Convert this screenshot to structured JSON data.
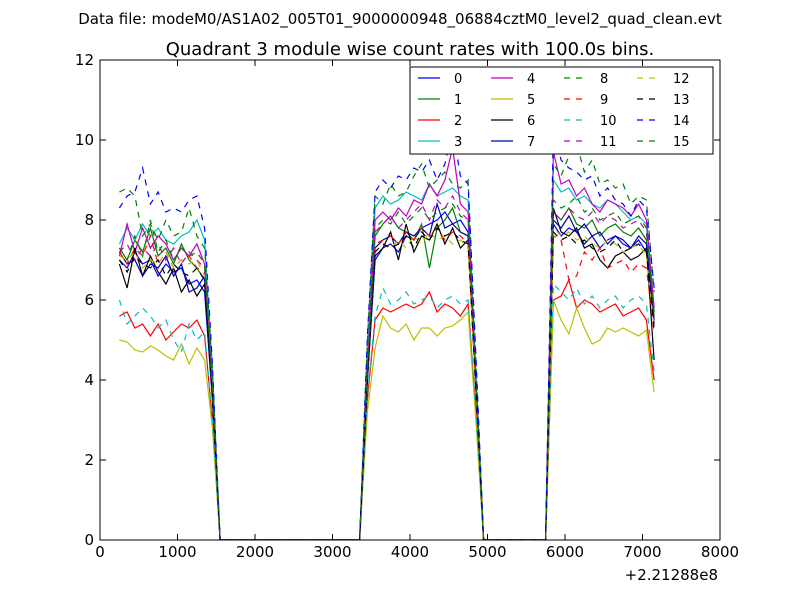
{
  "chart_data": {
    "type": "line",
    "suptitle": "Data file: modeM0/AS1A02_005T01_9000000948_06884cztM0_level2_quad_clean.evt",
    "title": "Quadrant 3 module wise count rates with 100.0s bins.",
    "xlabel": "",
    "ylabel": "",
    "x_offset_label": "+2.21288e8",
    "xlim": [
      0,
      8000
    ],
    "ylim": [
      0,
      12
    ],
    "x_ticks": [
      "0",
      "1000",
      "2000",
      "3000",
      "4000",
      "5000",
      "6000",
      "7000",
      "8000"
    ],
    "y_ticks": [
      "0",
      "2",
      "4",
      "6",
      "8",
      "10",
      "12"
    ],
    "legend_position": "top-right",
    "legend_columns": 4,
    "x": [
      250,
      350,
      450,
      550,
      650,
      750,
      850,
      950,
      1050,
      1150,
      1250,
      1350,
      1450,
      1550,
      1650,
      1750,
      1850,
      1950,
      2050,
      2150,
      2250,
      2350,
      2450,
      2550,
      2650,
      2750,
      2850,
      2950,
      3050,
      3150,
      3250,
      3350,
      3450,
      3550,
      3650,
      3750,
      3850,
      3950,
      4050,
      4150,
      4250,
      4350,
      4450,
      4550,
      4650,
      4750,
      4850,
      4950,
      5050,
      5150,
      5250,
      5350,
      5450,
      5550,
      5650,
      5750,
      5850,
      5950,
      6050,
      6150,
      6250,
      6350,
      6450,
      6550,
      6650,
      6750,
      6850,
      6950,
      7050,
      7150
    ],
    "series": [
      {
        "name": "0",
        "color": "#0000ff",
        "dash": "solid",
        "values": [
          7.0,
          6.8,
          7.2,
          6.9,
          7.0,
          6.6,
          6.9,
          6.7,
          6.8,
          6.4,
          6.5,
          6.2,
          3.5,
          0,
          0,
          0,
          0,
          0,
          0,
          0,
          0,
          0,
          0,
          0,
          0,
          0,
          0,
          0,
          0,
          0,
          0,
          0,
          4.0,
          7.0,
          7.3,
          7.4,
          7.2,
          7.6,
          7.5,
          7.8,
          7.9,
          8.0,
          8.2,
          7.9,
          8.0,
          7.7,
          3.8,
          0,
          0,
          0,
          0,
          0,
          0,
          0,
          0,
          0,
          7.9,
          7.6,
          7.8,
          7.7,
          7.4,
          7.6,
          7.3,
          7.5,
          7.6,
          7.4,
          7.3,
          7.5,
          7.2,
          5.5
        ]
      },
      {
        "name": "1",
        "color": "#008000",
        "dash": "solid",
        "values": [
          7.3,
          7.0,
          7.5,
          7.2,
          7.8,
          7.1,
          7.3,
          6.9,
          7.4,
          7.0,
          6.8,
          6.5,
          3.6,
          0,
          0,
          0,
          0,
          0,
          0,
          0,
          0,
          0,
          0,
          0,
          0,
          0,
          0,
          0,
          0,
          0,
          0,
          0,
          4.2,
          7.6,
          7.9,
          8.1,
          7.8,
          7.7,
          7.5,
          7.9,
          6.8,
          7.8,
          8.0,
          8.3,
          7.7,
          7.6,
          3.9,
          0,
          0,
          0,
          0,
          0,
          0,
          0,
          0,
          0,
          8.2,
          8.0,
          8.3,
          7.9,
          7.8,
          8.0,
          7.6,
          7.8,
          7.9,
          7.7,
          7.6,
          7.8,
          7.5,
          5.6
        ]
      },
      {
        "name": "2",
        "color": "#ff0000",
        "dash": "solid",
        "values": [
          5.6,
          5.7,
          5.3,
          5.4,
          5.1,
          5.4,
          5.0,
          5.2,
          5.4,
          5.3,
          5.5,
          5.1,
          3.0,
          0,
          0,
          0,
          0,
          0,
          0,
          0,
          0,
          0,
          0,
          0,
          0,
          0,
          0,
          0,
          0,
          0,
          0,
          0,
          3.5,
          5.5,
          5.8,
          5.7,
          5.8,
          5.9,
          5.8,
          5.9,
          6.2,
          5.7,
          5.9,
          5.8,
          5.6,
          5.9,
          3.2,
          0,
          0,
          0,
          0,
          0,
          0,
          0,
          0,
          0,
          6.0,
          6.1,
          6.5,
          5.8,
          6.0,
          5.9,
          5.7,
          5.8,
          5.9,
          5.6,
          5.7,
          5.8,
          5.5,
          4.0
        ]
      },
      {
        "name": "3",
        "color": "#00bfbf",
        "dash": "solid",
        "values": [
          7.4,
          7.8,
          7.5,
          7.9,
          7.6,
          7.8,
          7.5,
          7.4,
          7.6,
          7.7,
          8.0,
          7.5,
          4.0,
          0,
          0,
          0,
          0,
          0,
          0,
          0,
          0,
          0,
          0,
          0,
          0,
          0,
          0,
          0,
          0,
          0,
          0,
          0,
          4.5,
          8.3,
          8.6,
          8.4,
          8.5,
          8.7,
          8.6,
          8.5,
          8.9,
          8.6,
          8.7,
          8.8,
          8.6,
          8.5,
          4.2,
          0,
          0,
          0,
          0,
          0,
          0,
          0,
          0,
          0,
          9.0,
          8.7,
          8.8,
          8.5,
          8.6,
          8.4,
          8.3,
          8.5,
          8.4,
          8.2,
          8.0,
          8.1,
          7.9,
          5.8
        ]
      },
      {
        "name": "4",
        "color": "#bf00bf",
        "dash": "solid",
        "values": [
          7.1,
          7.9,
          7.2,
          7.8,
          7.3,
          7.6,
          7.4,
          7.0,
          7.3,
          7.1,
          7.4,
          6.9,
          3.8,
          0,
          0,
          0,
          0,
          0,
          0,
          0,
          0,
          0,
          0,
          0,
          0,
          0,
          0,
          0,
          0,
          0,
          0,
          0,
          4.3,
          8.0,
          8.2,
          8.0,
          8.3,
          8.1,
          8.5,
          8.4,
          8.9,
          8.6,
          9.0,
          9.8,
          8.4,
          8.2,
          4.0,
          0,
          0,
          0,
          0,
          0,
          0,
          0,
          0,
          0,
          9.7,
          8.9,
          9.0,
          8.6,
          8.8,
          8.4,
          8.2,
          8.5,
          8.4,
          8.3,
          8.1,
          8.4,
          8.0,
          5.8
        ]
      },
      {
        "name": "5",
        "color": "#bfbf00",
        "dash": "solid",
        "values": [
          5.0,
          4.95,
          4.75,
          4.7,
          4.85,
          4.75,
          4.6,
          4.5,
          4.9,
          4.4,
          4.8,
          4.5,
          2.8,
          0,
          0,
          0,
          0,
          0,
          0,
          0,
          0,
          0,
          0,
          0,
          0,
          0,
          0,
          0,
          0,
          0,
          0,
          0,
          3.2,
          4.8,
          5.6,
          5.3,
          5.2,
          5.4,
          5.0,
          5.3,
          5.3,
          5.1,
          5.3,
          5.35,
          5.5,
          5.7,
          3.0,
          0,
          0,
          0,
          0,
          0,
          0,
          0,
          0,
          0,
          6.0,
          5.5,
          5.15,
          5.8,
          5.3,
          4.9,
          5.0,
          5.3,
          5.2,
          5.3,
          5.2,
          5.1,
          5.25,
          3.7
        ]
      },
      {
        "name": "6",
        "color": "#000000",
        "dash": "solid",
        "values": [
          6.9,
          6.3,
          7.3,
          6.6,
          7.1,
          6.7,
          6.4,
          6.8,
          6.2,
          6.5,
          6.1,
          6.4,
          3.6,
          0,
          0,
          0,
          0,
          0,
          0,
          0,
          0,
          0,
          0,
          0,
          0,
          0,
          0,
          0,
          0,
          0,
          0,
          0,
          4.0,
          7.1,
          7.3,
          7.7,
          7.0,
          7.9,
          7.2,
          7.6,
          7.5,
          7.9,
          7.4,
          7.8,
          7.3,
          7.5,
          3.7,
          0,
          0,
          0,
          0,
          0,
          0,
          0,
          0,
          0,
          8.3,
          7.7,
          7.6,
          7.8,
          7.3,
          7.4,
          7.0,
          6.8,
          7.1,
          7.2,
          7.0,
          7.1,
          7.3,
          4.5
        ]
      },
      {
        "name": "7",
        "color": "#0000aa",
        "dash": "solid",
        "values": [
          7.2,
          6.9,
          7.0,
          6.6,
          6.9,
          6.8,
          7.1,
          6.6,
          6.9,
          6.2,
          6.3,
          6.6,
          3.7,
          0,
          0,
          0,
          0,
          0,
          0,
          0,
          0,
          0,
          0,
          0,
          0,
          0,
          0,
          0,
          0,
          0,
          0,
          0,
          4.1,
          7.3,
          7.5,
          7.6,
          7.4,
          7.7,
          7.6,
          7.8,
          7.6,
          8.4,
          7.8,
          7.9,
          7.7,
          7.6,
          3.8,
          0,
          0,
          0,
          0,
          0,
          0,
          0,
          0,
          0,
          8.0,
          7.8,
          8.1,
          7.7,
          7.9,
          7.6,
          7.7,
          7.4,
          7.6,
          7.5,
          7.3,
          7.6,
          7.4,
          5.4
        ]
      },
      {
        "name": "8",
        "color": "#008000",
        "dash": "dashed",
        "values": [
          8.7,
          8.8,
          8.6,
          7.6,
          7.9,
          7.5,
          8.0,
          7.6,
          7.7,
          8.3,
          7.6,
          7.3,
          4.3,
          0,
          0,
          0,
          0,
          0,
          0,
          0,
          0,
          0,
          0,
          0,
          0,
          0,
          0,
          0,
          0,
          0,
          0,
          0,
          5.0,
          8.6,
          8.4,
          8.9,
          8.6,
          8.7,
          9.1,
          9.4,
          8.8,
          9.0,
          9.2,
          8.9,
          8.8,
          9.0,
          4.5,
          0,
          0,
          0,
          0,
          0,
          0,
          0,
          0,
          0,
          9.4,
          9.1,
          9.6,
          9.9,
          9.2,
          9.5,
          8.9,
          9.0,
          8.8,
          8.9,
          8.4,
          8.6,
          8.5,
          6.2
        ]
      },
      {
        "name": "9",
        "color": "#ff0000",
        "dash": "dashed",
        "values": [
          7.2,
          6.9,
          7.3,
          7.1,
          7.6,
          6.9,
          7.2,
          6.8,
          7.0,
          7.1,
          6.8,
          6.7,
          3.7,
          0,
          0,
          0,
          0,
          0,
          0,
          0,
          0,
          0,
          0,
          0,
          0,
          0,
          0,
          0,
          0,
          0,
          0,
          0,
          4.2,
          7.4,
          7.5,
          7.6,
          7.4,
          7.7,
          7.5,
          7.8,
          7.6,
          7.8,
          7.5,
          7.7,
          7.6,
          7.4,
          3.8,
          0,
          0,
          0,
          0,
          0,
          0,
          0,
          0,
          0,
          7.6,
          7.5,
          6.5,
          6.6,
          7.2,
          7.0,
          7.3,
          6.8,
          6.9,
          7.0,
          6.7,
          6.9,
          6.8,
          5.2
        ]
      },
      {
        "name": "10",
        "color": "#00bfbf",
        "dash": "dashed",
        "values": [
          6.0,
          5.4,
          5.6,
          5.8,
          5.6,
          5.3,
          5.5,
          5.0,
          4.7,
          5.4,
          5.0,
          5.2,
          3.0,
          0,
          0,
          0,
          0,
          0,
          0,
          0,
          0,
          0,
          0,
          0,
          0,
          0,
          0,
          0,
          0,
          0,
          0,
          0,
          3.6,
          5.6,
          6.3,
          5.9,
          6.0,
          6.2,
          5.9,
          6.0,
          6.1,
          5.8,
          6.0,
          6.1,
          5.9,
          6.0,
          3.2,
          0,
          0,
          0,
          0,
          0,
          0,
          0,
          0,
          0,
          6.4,
          6.2,
          6.0,
          6.3,
          5.9,
          6.1,
          5.8,
          6.0,
          6.1,
          5.8,
          6.0,
          6.1,
          5.9,
          4.2
        ]
      },
      {
        "name": "11",
        "color": "#bf00bf",
        "dash": "dashed",
        "values": [
          7.2,
          7.4,
          7.0,
          7.3,
          7.1,
          7.4,
          7.0,
          7.3,
          6.9,
          7.2,
          7.0,
          6.8,
          3.8,
          0,
          0,
          0,
          0,
          0,
          0,
          0,
          0,
          0,
          0,
          0,
          0,
          0,
          0,
          0,
          0,
          0,
          0,
          0,
          4.3,
          7.7,
          7.9,
          8.1,
          7.8,
          8.0,
          8.2,
          8.4,
          8.0,
          8.5,
          8.3,
          8.6,
          8.2,
          8.0,
          4.0,
          0,
          0,
          0,
          0,
          0,
          0,
          0,
          0,
          0,
          8.2,
          8.0,
          8.3,
          8.1,
          8.0,
          8.2,
          7.9,
          8.1,
          8.0,
          7.8,
          7.9,
          8.0,
          7.7,
          5.7
        ]
      },
      {
        "name": "12",
        "color": "#bfbf00",
        "dash": "dashed",
        "values": [
          7.1,
          7.0,
          7.2,
          6.8,
          7.0,
          6.9,
          7.2,
          6.8,
          7.0,
          6.9,
          7.0,
          6.6,
          3.7,
          0,
          0,
          0,
          0,
          0,
          0,
          0,
          0,
          0,
          0,
          0,
          0,
          0,
          0,
          0,
          0,
          0,
          0,
          0,
          4.1,
          7.2,
          7.4,
          7.3,
          7.5,
          7.3,
          7.6,
          7.4,
          7.7,
          7.5,
          7.6,
          7.4,
          7.5,
          7.3,
          3.8,
          0,
          0,
          0,
          0,
          0,
          0,
          0,
          0,
          0,
          7.8,
          7.6,
          7.7,
          7.5,
          7.6,
          7.4,
          7.3,
          7.5,
          7.4,
          7.2,
          7.3,
          7.4,
          7.1,
          5.3
        ]
      },
      {
        "name": "13",
        "color": "#000000",
        "dash": "dashed",
        "values": [
          7.0,
          6.7,
          7.1,
          6.9,
          6.8,
          7.0,
          6.6,
          6.9,
          6.7,
          6.6,
          6.8,
          6.5,
          3.6,
          0,
          0,
          0,
          0,
          0,
          0,
          0,
          0,
          0,
          0,
          0,
          0,
          0,
          0,
          0,
          0,
          0,
          0,
          0,
          4.0,
          7.2,
          7.4,
          7.3,
          7.4,
          7.6,
          7.3,
          7.7,
          7.5,
          7.8,
          7.6,
          7.7,
          7.5,
          7.4,
          3.8,
          0,
          0,
          0,
          0,
          0,
          0,
          0,
          0,
          0,
          7.7,
          7.5,
          7.6,
          7.4,
          7.5,
          7.3,
          7.2,
          7.3,
          7.5,
          7.2,
          7.3,
          7.4,
          7.2,
          5.3
        ]
      },
      {
        "name": "14",
        "color": "#0000ff",
        "dash": "dashed",
        "values": [
          8.3,
          8.6,
          8.7,
          9.3,
          8.4,
          8.7,
          8.2,
          8.3,
          8.2,
          8.5,
          8.6,
          7.8,
          4.4,
          0,
          0,
          0,
          0,
          0,
          0,
          0,
          0,
          0,
          0,
          0,
          0,
          0,
          0,
          0,
          0,
          0,
          0,
          0,
          5.1,
          8.7,
          9.0,
          8.8,
          9.1,
          9.0,
          9.3,
          9.2,
          9.5,
          9.0,
          9.4,
          10.3,
          9.1,
          8.9,
          4.6,
          0,
          0,
          0,
          0,
          0,
          0,
          0,
          0,
          0,
          10.3,
          9.5,
          9.3,
          9.2,
          9.0,
          9.1,
          8.6,
          8.8,
          8.5,
          8.4,
          8.1,
          8.5,
          8.3,
          6.3
        ]
      },
      {
        "name": "15",
        "color": "#008000",
        "dash": "dashed",
        "values": [
          7.3,
          7.0,
          7.6,
          7.1,
          8.0,
          7.2,
          7.5,
          7.0,
          7.3,
          7.1,
          7.2,
          6.9,
          3.8,
          0,
          0,
          0,
          0,
          0,
          0,
          0,
          0,
          0,
          0,
          0,
          0,
          0,
          0,
          0,
          0,
          0,
          0,
          0,
          4.3,
          7.8,
          8.0,
          7.9,
          8.2,
          7.9,
          8.1,
          8.3,
          8.0,
          8.2,
          8.3,
          8.4,
          8.1,
          8.0,
          4.0,
          0,
          0,
          0,
          0,
          0,
          0,
          0,
          0,
          0,
          8.5,
          8.3,
          8.4,
          8.6,
          8.2,
          8.3,
          8.0,
          8.1,
          8.2,
          7.9,
          8.0,
          8.1,
          7.8,
          5.7
        ]
      }
    ]
  }
}
